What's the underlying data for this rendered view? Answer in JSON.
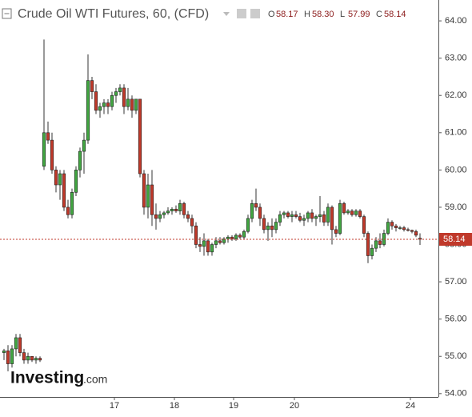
{
  "chart_data": {
    "type": "candlestick",
    "title": "Crude Oil WTI Futures, 60, (CFD)",
    "ohlc_letters": [
      "O",
      "H",
      "L",
      "C"
    ],
    "ohlc_labels": [
      "58.17",
      "58.30",
      "57.99",
      "58.14"
    ],
    "watermark": [
      "Investing",
      ".com"
    ],
    "up_color": "#43a843",
    "down_color": "#c0392b",
    "x": [
      0,
      1,
      2,
      3,
      4,
      5,
      6,
      7,
      8,
      9,
      10,
      11,
      12,
      13,
      14,
      15,
      16,
      17,
      18,
      19,
      20,
      21,
      22,
      23,
      24,
      25,
      26,
      27,
      28,
      29,
      30,
      31,
      32,
      33,
      34,
      35,
      36,
      37,
      38,
      39,
      40,
      41,
      42,
      43,
      44,
      45,
      46,
      47,
      48,
      49,
      50,
      51,
      52,
      53,
      54,
      55,
      56,
      57,
      58,
      59,
      60,
      61,
      62,
      63,
      64,
      65,
      66,
      67,
      68,
      69,
      70,
      71,
      72,
      73,
      74,
      75,
      76,
      77,
      78,
      79,
      80,
      81,
      82,
      83,
      84,
      85,
      86,
      87,
      88,
      89,
      90,
      91,
      92,
      93,
      94,
      95,
      96,
      97,
      98,
      99,
      100,
      101,
      102,
      103,
      104
    ],
    "open": [
      55.1,
      55.15,
      54.8,
      55.2,
      55.5,
      55.1,
      54.9,
      55.0,
      54.9,
      54.95,
      60.1,
      61.0,
      60.8,
      60.0,
      59.6,
      59.9,
      59.0,
      58.8,
      59.4,
      60.0,
      60.5,
      60.8,
      62.4,
      62.1,
      61.6,
      61.7,
      61.8,
      61.7,
      62.0,
      62.1,
      62.2,
      61.7,
      61.9,
      61.6,
      61.9,
      59.9,
      59.0,
      59.6,
      58.8,
      58.7,
      58.8,
      58.85,
      58.9,
      58.95,
      58.9,
      59.1,
      58.8,
      58.7,
      58.5,
      58.0,
      57.95,
      58.1,
      57.8,
      58.0,
      58.1,
      58.05,
      58.15,
      58.2,
      58.15,
      58.25,
      58.2,
      58.35,
      58.7,
      59.1,
      59.0,
      58.7,
      58.4,
      58.5,
      58.4,
      58.6,
      58.8,
      58.85,
      58.75,
      58.8,
      58.75,
      58.65,
      58.7,
      58.85,
      58.7,
      58.75,
      58.8,
      58.6,
      59.0,
      58.4,
      58.3,
      59.1,
      58.85,
      58.9,
      58.8,
      58.9,
      58.75,
      58.3,
      57.7,
      57.9,
      58.1,
      58.0,
      58.3,
      58.6,
      58.5,
      58.45,
      58.45,
      58.4,
      58.38,
      58.35,
      58.17
    ],
    "high": [
      55.2,
      55.3,
      55.3,
      55.6,
      55.6,
      55.2,
      55.1,
      55.0,
      55.0,
      55.0,
      63.5,
      61.3,
      61.0,
      60.1,
      60.0,
      60.0,
      59.2,
      59.5,
      60.1,
      60.6,
      61.0,
      63.1,
      62.5,
      62.3,
      61.8,
      61.9,
      61.9,
      62.1,
      62.2,
      62.3,
      62.3,
      62.2,
      62.0,
      61.9,
      61.9,
      60.0,
      59.9,
      60.0,
      59.1,
      58.9,
      58.9,
      59.0,
      59.0,
      59.05,
      59.2,
      59.15,
      58.9,
      58.8,
      58.6,
      58.2,
      58.3,
      58.15,
      58.05,
      58.2,
      58.2,
      58.2,
      58.25,
      58.25,
      58.3,
      58.3,
      58.4,
      58.8,
      59.2,
      59.5,
      59.1,
      58.8,
      58.6,
      58.7,
      58.7,
      58.9,
      58.9,
      58.9,
      58.9,
      58.9,
      58.85,
      58.8,
      58.9,
      58.95,
      58.8,
      59.3,
      58.9,
      59.1,
      59.05,
      58.5,
      59.2,
      59.15,
      58.95,
      58.95,
      58.95,
      58.95,
      58.8,
      58.35,
      58.0,
      58.2,
      58.3,
      58.4,
      58.7,
      58.65,
      58.55,
      58.5,
      58.5,
      58.45,
      58.4,
      58.4,
      58.3
    ],
    "low": [
      54.9,
      54.6,
      54.7,
      55.0,
      55.0,
      54.8,
      54.8,
      54.85,
      54.8,
      54.85,
      60.0,
      60.7,
      59.9,
      59.4,
      59.2,
      58.9,
      58.7,
      58.7,
      59.3,
      59.8,
      59.9,
      60.7,
      61.9,
      61.5,
      61.4,
      61.5,
      61.5,
      61.6,
      61.8,
      62.0,
      61.5,
      61.6,
      61.4,
      61.5,
      59.8,
      58.8,
      58.7,
      58.5,
      58.4,
      58.6,
      58.7,
      58.8,
      58.8,
      58.85,
      58.8,
      58.7,
      58.6,
      58.3,
      57.9,
      57.8,
      57.7,
      57.7,
      57.7,
      57.9,
      58.0,
      58.0,
      58.05,
      58.1,
      58.1,
      58.15,
      58.15,
      58.3,
      58.6,
      58.9,
      58.5,
      58.3,
      58.1,
      58.2,
      58.3,
      58.5,
      58.7,
      58.7,
      58.6,
      58.7,
      58.6,
      58.5,
      58.6,
      58.6,
      58.5,
      58.6,
      58.5,
      58.5,
      58.0,
      58.2,
      58.25,
      58.8,
      58.8,
      58.75,
      58.75,
      58.7,
      58.2,
      57.5,
      57.6,
      57.8,
      57.9,
      57.95,
      58.25,
      58.4,
      58.35,
      58.4,
      58.35,
      58.35,
      58.3,
      58.2,
      57.99
    ],
    "close": [
      55.15,
      54.8,
      55.2,
      55.5,
      55.1,
      54.9,
      55.0,
      54.9,
      54.95,
      54.9,
      61.0,
      60.8,
      60.0,
      59.6,
      59.9,
      59.0,
      58.8,
      59.4,
      60.0,
      60.5,
      60.8,
      62.4,
      62.1,
      61.6,
      61.7,
      61.8,
      61.7,
      62.0,
      62.1,
      62.2,
      61.7,
      61.9,
      61.6,
      61.9,
      59.9,
      59.0,
      59.6,
      58.8,
      58.7,
      58.8,
      58.85,
      58.9,
      58.95,
      58.9,
      59.1,
      58.8,
      58.7,
      58.5,
      58.0,
      57.95,
      58.1,
      57.8,
      58.0,
      58.1,
      58.05,
      58.15,
      58.2,
      58.15,
      58.25,
      58.2,
      58.35,
      58.7,
      59.1,
      59.0,
      58.7,
      58.4,
      58.5,
      58.4,
      58.6,
      58.8,
      58.85,
      58.75,
      58.8,
      58.75,
      58.65,
      58.7,
      58.85,
      58.7,
      58.75,
      58.8,
      58.6,
      59.0,
      58.4,
      58.3,
      59.1,
      58.85,
      58.9,
      58.8,
      58.9,
      58.75,
      58.3,
      57.7,
      57.9,
      58.1,
      58.0,
      58.3,
      58.6,
      58.5,
      58.45,
      58.45,
      58.4,
      58.38,
      58.35,
      58.25,
      58.14
    ],
    "last_price": {
      "value": 58.14,
      "label": "58.14"
    },
    "xlim": [
      -1,
      109
    ],
    "xticks": [
      {
        "value": 27.6,
        "label": "17"
      },
      {
        "value": 42.6,
        "label": "18"
      },
      {
        "value": 57.4,
        "label": "19"
      },
      {
        "value": 72.6,
        "label": "20"
      },
      {
        "value": 101.6,
        "label": "24"
      }
    ],
    "ylim": [
      53.91,
      64.56
    ],
    "yticks": [
      {
        "value": 54,
        "label": "54.00"
      },
      {
        "value": 55,
        "label": "55.00"
      },
      {
        "value": 56,
        "label": "56.00"
      },
      {
        "value": 57,
        "label": "57.00"
      },
      {
        "value": 58,
        "label": "58.00"
      },
      {
        "value": 59,
        "label": "59.00"
      },
      {
        "value": 60,
        "label": "60.00"
      },
      {
        "value": 61,
        "label": "61.00"
      },
      {
        "value": 62,
        "label": "62.00"
      },
      {
        "value": 63,
        "label": "63.00"
      },
      {
        "value": 64,
        "label": "64.00"
      }
    ]
  }
}
